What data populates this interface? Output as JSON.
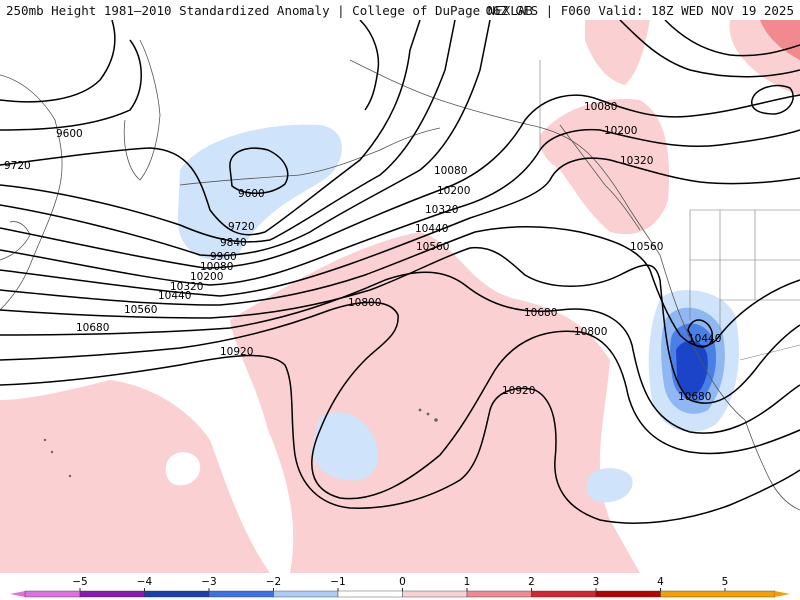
{
  "header": {
    "title": "250mb Height 1981–2010 Standardized Anomaly | College of DuPage NEXLAB",
    "run_info": "06Z GFS | F060 Valid: 18Z WED NOV 19 2025"
  },
  "contour_labels": {
    "c9600_a": "9600",
    "c9600_b": "9600",
    "c9720_a": "9720",
    "c9720_b": "9720",
    "c9840": "9840",
    "c9960": "9960",
    "c10080_a": "10080",
    "c10080_b": "10080",
    "c10080_c": "10080",
    "c10200_a": "10200",
    "c10200_b": "10200",
    "c10200_c": "10200",
    "c10320_a": "10320",
    "c10320_b": "10320",
    "c10320_c": "10320",
    "c10440_a": "10440",
    "c10440_b": "10440",
    "c10440_c": "10440",
    "c10560_a": "10560",
    "c10560_b": "10560",
    "c10560_c": "10560",
    "c10680_a": "10680",
    "c10680_b": "10680",
    "c10680_c": "10680",
    "c10800_a": "10800",
    "c10800_b": "10800",
    "c10920_a": "10920",
    "c10920_b": "10920"
  },
  "colorbar": {
    "ticks": [
      "−5",
      "−4",
      "−3",
      "−2",
      "−1",
      "0",
      "1",
      "2",
      "3",
      "4",
      "5"
    ],
    "colors": [
      "#e070e0",
      "#8a1ab8",
      "#1a3fb0",
      "#3a72e6",
      "#a9cdf7",
      "#ffffff",
      "#fbd0d2",
      "#f08a8e",
      "#d8242c",
      "#b80000",
      "#f5a000"
    ]
  },
  "colors": {
    "positive_anomaly": "#fbd0d2",
    "strong_positive": "#f08a8e",
    "negative_anomaly": "#cfe3fa",
    "medium_negative": "#8fb8f2",
    "strong_negative": "#4a7fe8",
    "very_strong_negative": "#1a45c8"
  }
}
